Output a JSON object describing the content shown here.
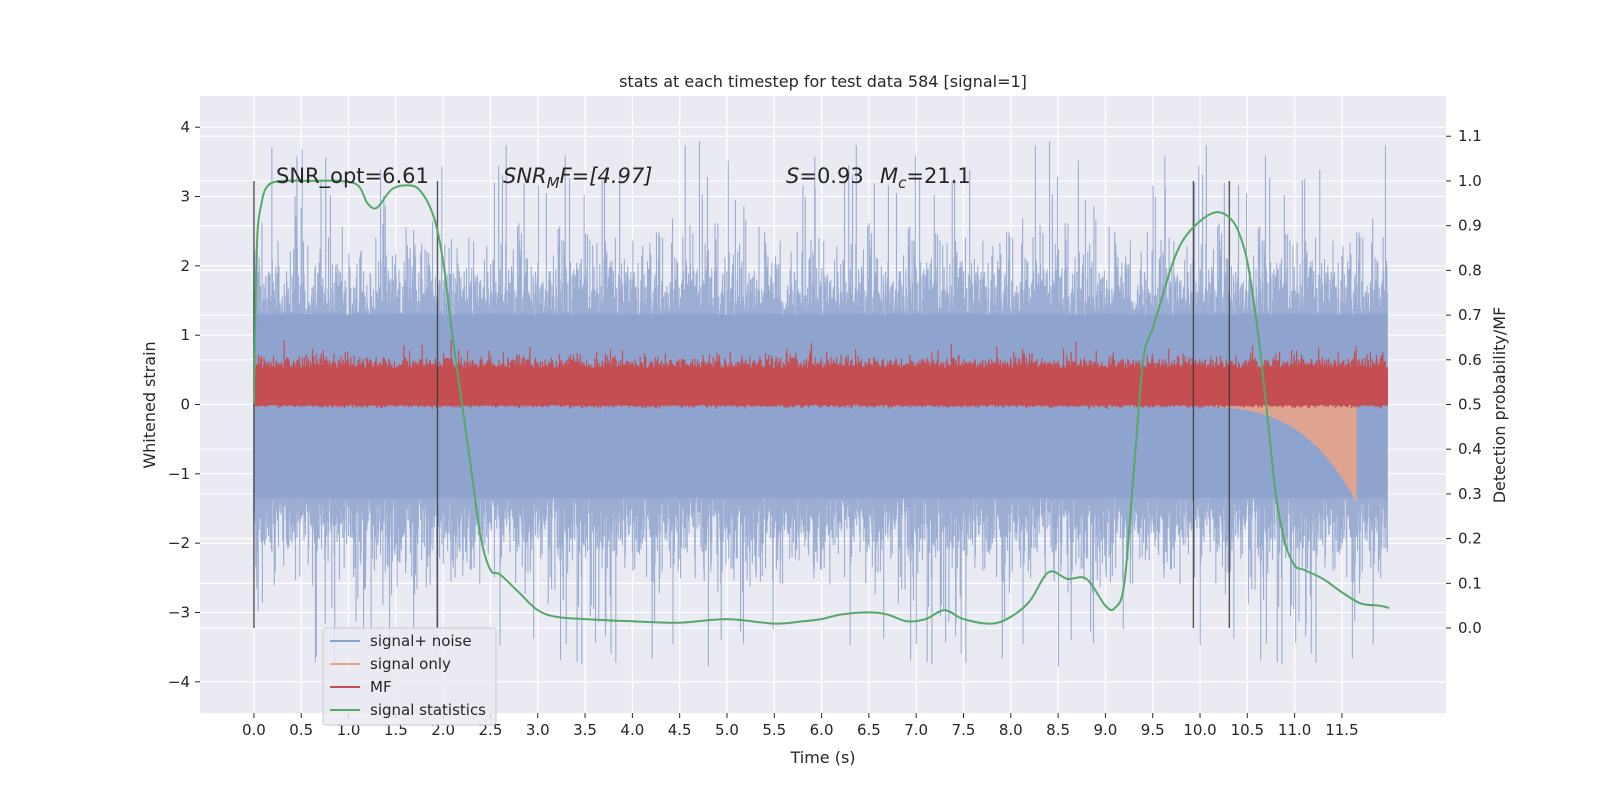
{
  "chart_data": {
    "type": "line",
    "title": "stats at each timestep for test data 584 [signal=1]",
    "xlabel": "Time (s)",
    "ylabel_left": "Whitened strain",
    "ylabel_right": "Detection probability/MF",
    "xlim": [
      -0.57,
      12.6
    ],
    "ylim_left": [
      -4.45,
      4.45
    ],
    "ylim_right": [
      -0.19,
      1.19
    ],
    "xticks": [
      0.0,
      0.5,
      1.0,
      1.5,
      2.0,
      2.5,
      3.0,
      3.5,
      4.0,
      4.5,
      5.0,
      5.5,
      6.0,
      6.5,
      7.0,
      7.5,
      8.0,
      8.5,
      9.0,
      9.5,
      10.0,
      10.5,
      11.0,
      11.5
    ],
    "xtick_labels": [
      "0.0",
      "0.5",
      "1.0",
      "1.5",
      "2.0",
      "2.5",
      "3.0",
      "3.5",
      "4.0",
      "4.5",
      "5.0",
      "5.5",
      "6.0",
      "6.5",
      "7.0",
      "7.5",
      "8.0",
      "8.5",
      "9.0",
      "9.5",
      "10.0",
      "10.5",
      "11.0",
      "11.5"
    ],
    "yticks_left": [
      -4,
      -3,
      -2,
      -1,
      0,
      1,
      2,
      3,
      4
    ],
    "ytick_labels_left": [
      "−4",
      "−3",
      "−2",
      "−1",
      "0",
      "1",
      "2",
      "3",
      "4"
    ],
    "yticks_right": [
      0.0,
      0.1,
      0.2,
      0.3,
      0.4,
      0.5,
      0.6,
      0.7,
      0.8,
      0.9,
      1.0,
      1.1
    ],
    "ytick_labels_right": [
      "0.0",
      "0.1",
      "0.2",
      "0.3",
      "0.4",
      "0.5",
      "0.6",
      "0.7",
      "0.8",
      "0.9",
      "1.0",
      "1.1"
    ],
    "grid": true,
    "legend_position": "lower-left",
    "legend": [
      {
        "label": "signal+ noise",
        "color": "#8da2cd"
      },
      {
        "label": "signal only",
        "color": "#e8a48a"
      },
      {
        "label": "MF",
        "color": "#c44e52"
      },
      {
        "label": "signal statistics",
        "color": "#55a868"
      }
    ],
    "annotations": {
      "snr_opt": "SNR_opt=6.61",
      "snr_mf_prefix": "SNR",
      "snr_mf_sub": "M",
      "snr_mf_suffix": "F=[4.97]",
      "s_prefix": "S",
      "s_value": "=0.93",
      "mc_prefix": "M",
      "mc_sub": "c",
      "mc_value": "=21.1"
    },
    "vertical_markers_x": [
      0.0,
      1.94,
      9.93,
      10.31
    ],
    "series": [
      {
        "name": "signal statistics",
        "axis": "right",
        "color": "#55a868",
        "x": [
          0.0,
          0.03,
          0.08,
          0.15,
          0.3,
          0.6,
          0.9,
          1.1,
          1.2,
          1.3,
          1.45,
          1.6,
          1.75,
          1.9,
          2.0,
          2.1,
          2.2,
          2.3,
          2.4,
          2.5,
          2.6,
          2.8,
          3.0,
          3.2,
          3.5,
          4.0,
          4.5,
          5.0,
          5.5,
          5.8,
          6.0,
          6.2,
          6.5,
          6.7,
          6.9,
          7.1,
          7.3,
          7.5,
          7.8,
          8.0,
          8.2,
          8.4,
          8.6,
          8.8,
          9.0,
          9.1,
          9.2,
          9.3,
          9.4,
          9.5,
          9.6,
          9.7,
          9.8,
          9.9,
          10.0,
          10.1,
          10.2,
          10.3,
          10.4,
          10.5,
          10.6,
          10.7,
          10.8,
          10.9,
          11.0,
          11.1,
          11.3,
          11.5,
          11.7,
          11.9,
          12.0
        ],
        "y": [
          0.5,
          0.85,
          0.95,
          0.99,
          1.0,
          1.0,
          1.0,
          0.99,
          0.95,
          0.94,
          0.98,
          0.99,
          0.98,
          0.92,
          0.82,
          0.65,
          0.5,
          0.35,
          0.2,
          0.13,
          0.12,
          0.08,
          0.04,
          0.025,
          0.02,
          0.015,
          0.012,
          0.02,
          0.01,
          0.015,
          0.02,
          0.03,
          0.035,
          0.03,
          0.015,
          0.02,
          0.04,
          0.02,
          0.01,
          0.025,
          0.06,
          0.125,
          0.11,
          0.11,
          0.05,
          0.045,
          0.1,
          0.35,
          0.6,
          0.67,
          0.74,
          0.81,
          0.86,
          0.89,
          0.91,
          0.925,
          0.93,
          0.92,
          0.89,
          0.82,
          0.68,
          0.5,
          0.3,
          0.19,
          0.14,
          0.13,
          0.11,
          0.08,
          0.055,
          0.05,
          0.045
        ]
      },
      {
        "name": "MF",
        "axis": "right",
        "color": "#c44e52",
        "x_start": 0.0,
        "x_end": 11.98,
        "mean": 0.53,
        "band": [
          0.5,
          0.58
        ],
        "peaks": [
          {
            "x": 11.65,
            "y": 0.63
          }
        ]
      },
      {
        "name": "signal only",
        "axis": "left",
        "color": "#e8a48a",
        "x_start": 9.5,
        "x_end": 11.65,
        "envelope_start": 0.02,
        "envelope_end": 1.4,
        "mean": -0.5
      },
      {
        "name": "signal+ noise",
        "axis": "left",
        "color": "#8da2cd",
        "x_start": 0.0,
        "x_end": 11.98,
        "core_range": [
          -1.7,
          1.8
        ],
        "extreme_range": [
          -4.0,
          4.1
        ]
      }
    ]
  }
}
